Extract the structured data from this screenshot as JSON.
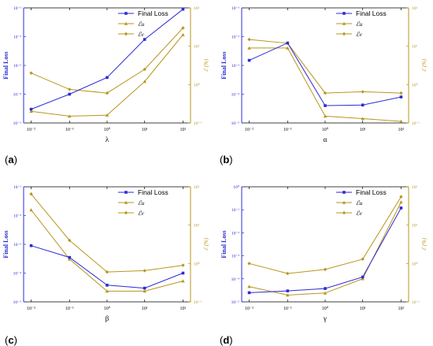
{
  "colors": {
    "loss": "#2b2bd6",
    "err_gold": "#b8961e",
    "axis_left": "#2b2bd6",
    "axis_right": "#b8961e"
  },
  "legend": {
    "final_loss": "Final Loss",
    "eu": "ℰu",
    "ev": "ℰv"
  },
  "panels": [
    {
      "letter": "a",
      "xlabel": "λ"
    },
    {
      "letter": "b",
      "xlabel": "α"
    },
    {
      "letter": "c",
      "xlabel": "β"
    },
    {
      "letter": "d",
      "xlabel": "γ"
    }
  ],
  "chart_data": [
    {
      "type": "line",
      "panel": "a",
      "xlabel": "λ",
      "ylabel": "Final Loss",
      "ylabel_right": "ℰ (%)",
      "x_scale": "log",
      "y_scale": "log",
      "y2_scale": "log",
      "x": [
        0.01,
        0.1,
        1,
        10,
        100
      ],
      "x_ticks": [
        "10⁻²",
        "10⁻¹",
        "10⁰",
        "10¹",
        "10²"
      ],
      "ylim": [
        1e-05,
        0.1
      ],
      "y_ticks": [
        "10⁻⁵",
        "10⁻⁴",
        "10⁻³",
        "10⁻²",
        "10⁻¹"
      ],
      "y2lim": [
        0.1,
        100
      ],
      "y2_ticks": [
        "10⁻¹",
        "10⁰",
        "10¹",
        "10²"
      ],
      "legend_position": "top-right",
      "series": [
        {
          "name": "Final Loss",
          "axis": "left",
          "marker": "square",
          "values": [
            3e-05,
            0.0001,
            0.00038,
            0.008,
            0.09
          ]
        },
        {
          "name": "ℰu",
          "axis": "right",
          "marker": "triangle",
          "values": [
            0.2,
            0.15,
            0.16,
            1.2,
            20
          ]
        },
        {
          "name": "ℰv",
          "axis": "right",
          "marker": "diamond",
          "values": [
            2,
            0.75,
            0.6,
            2.5,
            30
          ]
        }
      ]
    },
    {
      "type": "line",
      "panel": "b",
      "xlabel": "α",
      "ylabel": "Final Loss",
      "ylabel_right": "ℰ (%)",
      "x_scale": "log",
      "y_scale": "log",
      "y2_scale": "log",
      "x": [
        0.01,
        0.1,
        1,
        10,
        100
      ],
      "x_ticks": [
        "10⁻²",
        "10⁻¹",
        "10⁰",
        "10¹",
        "10²"
      ],
      "ylim": [
        1e-05,
        0.1
      ],
      "y_ticks": [
        "10⁻⁵",
        "10⁻⁴",
        "10⁻³",
        "10⁻²",
        "10⁻¹"
      ],
      "y2lim": [
        0.1,
        100
      ],
      "y2_ticks": [
        "10⁻¹",
        "10⁰",
        "10¹",
        "10²"
      ],
      "legend_position": "top-right",
      "series": [
        {
          "name": "Final Loss",
          "axis": "left",
          "marker": "square",
          "values": [
            0.0015,
            0.006,
            4e-05,
            4.2e-05,
            8e-05
          ]
        },
        {
          "name": "ℰu",
          "axis": "right",
          "marker": "triangle",
          "values": [
            9,
            9,
            0.15,
            0.13,
            0.11
          ]
        },
        {
          "name": "ℰv",
          "axis": "right",
          "marker": "diamond",
          "values": [
            15,
            12,
            0.6,
            0.65,
            0.6
          ]
        }
      ]
    },
    {
      "type": "line",
      "panel": "c",
      "xlabel": "β",
      "ylabel": "Final Loss",
      "ylabel_right": "ℰ (%)",
      "x_scale": "log",
      "y_scale": "log",
      "y2_scale": "log",
      "x": [
        0.01,
        0.1,
        1,
        10,
        100
      ],
      "x_ticks": [
        "10⁻²",
        "10⁻¹",
        "10⁰",
        "10¹",
        "10²"
      ],
      "ylim": [
        1e-05,
        0.1
      ],
      "y_ticks": [
        "10⁻⁵",
        "10⁻⁴",
        "10⁻³",
        "10⁻²",
        "10⁻¹"
      ],
      "y2lim": [
        0.1,
        100
      ],
      "y2_ticks": [
        "10⁻¹",
        "10⁰",
        "10¹",
        "10²"
      ],
      "legend_position": "top-right",
      "series": [
        {
          "name": "Final Loss",
          "axis": "left",
          "marker": "square",
          "values": [
            0.0009,
            0.00035,
            3.8e-05,
            3e-05,
            0.0001
          ]
        },
        {
          "name": "ℰu",
          "axis": "right",
          "marker": "triangle",
          "values": [
            25,
            1.3,
            0.19,
            0.19,
            0.35
          ]
        },
        {
          "name": "ℰv",
          "axis": "right",
          "marker": "diamond",
          "values": [
            65,
            4,
            0.6,
            0.65,
            0.9
          ]
        }
      ]
    },
    {
      "type": "line",
      "panel": "d",
      "xlabel": "γ",
      "ylabel": "Final Loss",
      "ylabel_right": "ℰ (%)",
      "x_scale": "log",
      "y_scale": "log",
      "y2_scale": "log",
      "x": [
        0.01,
        0.1,
        1,
        10,
        100
      ],
      "x_ticks": [
        "10⁻²",
        "10⁻¹",
        "10⁰",
        "10¹",
        "10²"
      ],
      "ylim": [
        1e-05,
        1
      ],
      "y_ticks": [
        "10⁻⁵",
        "10⁻⁴",
        "10⁻³",
        "10⁻²",
        "10⁻¹",
        "10⁰"
      ],
      "y2lim": [
        0.1,
        100
      ],
      "y2_ticks": [
        "10⁻¹",
        "10⁰",
        "10¹",
        "10²"
      ],
      "legend_position": "top-right",
      "series": [
        {
          "name": "Final Loss",
          "axis": "left",
          "marker": "square",
          "values": [
            2.5e-05,
            3e-05,
            3.8e-05,
            0.00012,
            0.12
          ]
        },
        {
          "name": "ℰu",
          "axis": "right",
          "marker": "triangle",
          "values": [
            0.25,
            0.15,
            0.17,
            0.4,
            40
          ]
        },
        {
          "name": "ℰv",
          "axis": "right",
          "marker": "diamond",
          "values": [
            1.0,
            0.55,
            0.7,
            1.3,
            55
          ]
        }
      ]
    }
  ]
}
